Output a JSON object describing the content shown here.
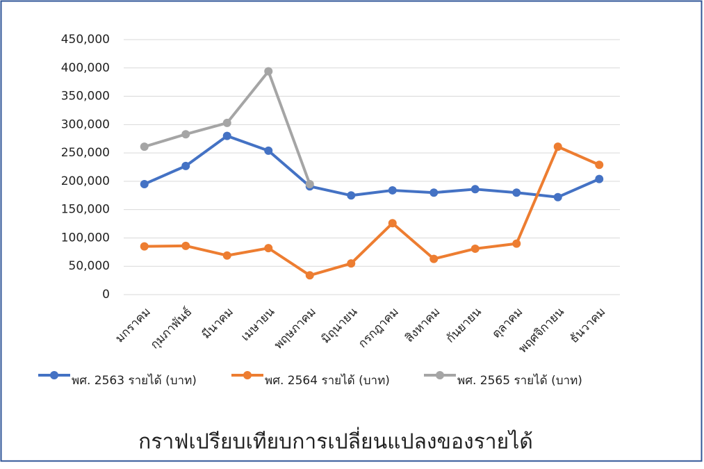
{
  "chart_data": {
    "type": "line",
    "title": "กราฟเปรียบเทียบการเปลี่ยนแปลงของรายได้",
    "categories": [
      "มกราคม",
      "กุมภาพันธ์",
      "มีนาคม",
      "เมษายน",
      "พฤษภาคม",
      "มิถุนายน",
      "กรกฎาคม",
      "สิงหาคม",
      "กันยายน",
      "ตุลาคม",
      "พฤศจิกายน",
      "ธันวาคม"
    ],
    "series": [
      {
        "name": "พศ. 2563 รายได้ (บาท)",
        "color": "#4472c4",
        "values": [
          195000,
          227000,
          280000,
          254000,
          191000,
          175000,
          184000,
          180000,
          186000,
          180000,
          172000,
          204000
        ]
      },
      {
        "name": "พศ. 2564 รายได้ (บาท)",
        "color": "#ed7d31",
        "values": [
          85000,
          86000,
          69000,
          82000,
          34000,
          55000,
          126000,
          63000,
          81000,
          90000,
          261000,
          229000
        ]
      },
      {
        "name": "พศ. 2565 รายได้ (บาท)",
        "color": "#a5a5a5",
        "values": [
          261000,
          283000,
          303000,
          394000,
          195000,
          null,
          null,
          null,
          null,
          null,
          null,
          null
        ]
      }
    ],
    "ylim": [
      0,
      450000
    ],
    "yticks": [
      0,
      {
        "value": 50000,
        "label": "50,000"
      },
      {
        "value": 100000,
        "label": "100,000"
      },
      {
        "value": 150000,
        "label": "150,000"
      },
      {
        "value": 200000,
        "label": "200,000"
      },
      {
        "value": 250000,
        "label": "250,000"
      },
      {
        "value": 300000,
        "label": "300,000"
      },
      {
        "value": 350000,
        "label": "350,000"
      },
      {
        "value": 400000,
        "label": "400,000"
      },
      {
        "value": 450000,
        "label": "450,000"
      }
    ],
    "grid": true,
    "legend": "bottom"
  }
}
